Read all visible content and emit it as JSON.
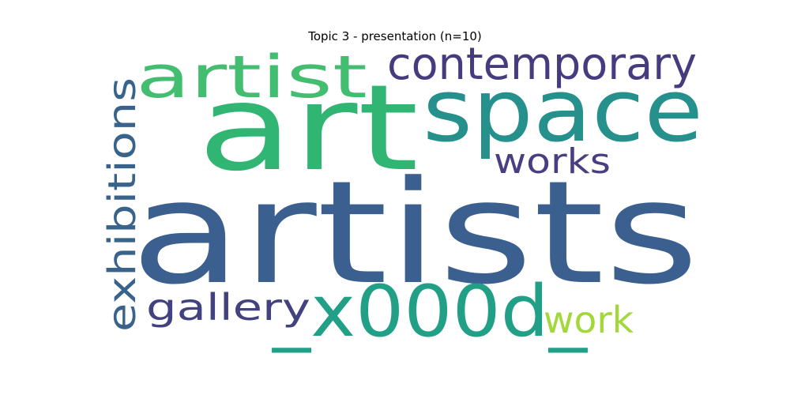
{
  "title": "Topic 3 - presentation (n=10)",
  "words": [
    {
      "text": "artists",
      "color": "#3b5f8f"
    },
    {
      "text": "art",
      "color": "#31b573"
    },
    {
      "text": "space",
      "color": "#25908c"
    },
    {
      "text": "_x000d_",
      "color": "#21a087"
    },
    {
      "text": "artist",
      "color": "#43bd6f"
    },
    {
      "text": "contemporary",
      "color": "#453c80"
    },
    {
      "text": "exhibitions",
      "color": "#39638b"
    },
    {
      "text": "works",
      "color": "#473f81"
    },
    {
      "text": "gallery",
      "color": "#41427f"
    },
    {
      "text": "work",
      "color": "#a2d83a"
    }
  ]
}
